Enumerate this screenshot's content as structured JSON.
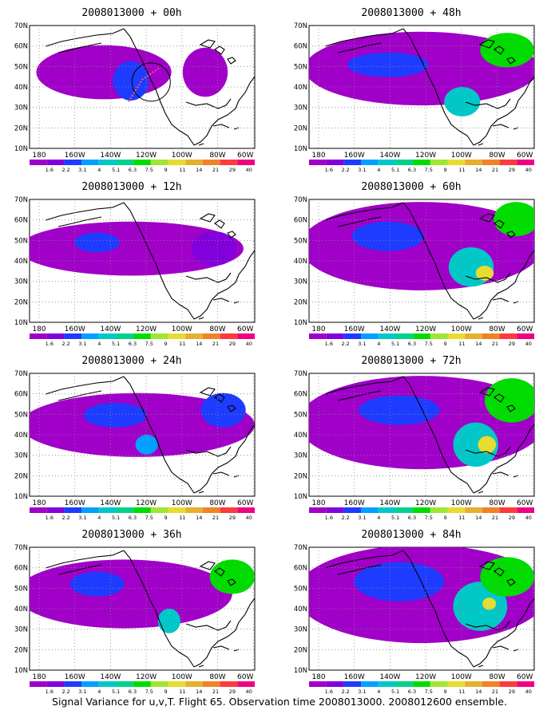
{
  "panels": [
    {
      "title": "2008013000 + 00h",
      "key": "00"
    },
    {
      "title": "2008013000 + 48h",
      "key": "48"
    },
    {
      "title": "2008013000 + 12h",
      "key": "12"
    },
    {
      "title": "2008013000 + 60h",
      "key": "60"
    },
    {
      "title": "2008013000 + 24h",
      "key": "24"
    },
    {
      "title": "2008013000 + 72h",
      "key": "72"
    },
    {
      "title": "2008013000 + 36h",
      "key": "36"
    },
    {
      "title": "2008013000 + 84h",
      "key": "84"
    }
  ],
  "lat_labels": [
    "70N",
    "60N",
    "50N",
    "40N",
    "30N",
    "20N",
    "10N"
  ],
  "lon_labels": [
    "180",
    "160W",
    "140W",
    "120W",
    "100W",
    "80W",
    "60W"
  ],
  "colorbar": {
    "labels": [
      "1.6",
      "2.2",
      "3.1",
      "4",
      "5.1",
      "6.3",
      "7.5",
      "9",
      "11",
      "14",
      "21",
      "29",
      "40"
    ],
    "colors": [
      "#a000c8",
      "#8200dc",
      "#1e3cff",
      "#00a0ff",
      "#00c8c8",
      "#00d28c",
      "#00dc00",
      "#a0e632",
      "#e6dc32",
      "#e6af2d",
      "#f08228",
      "#fa3c3c",
      "#f00082"
    ]
  },
  "map_colors": {
    "land_outline": "#000000",
    "low": "#a000c8",
    "low2": "#8200dc",
    "mid": "#1e3cff",
    "mid2": "#00a0ff",
    "high": "#00c8c8",
    "high2": "#00dc00",
    "peak": "#e6dc32",
    "flight_track": "#ff5078"
  },
  "caption": "Signal Variance for u,v,T. Flight 65. Observation time 2008013000. 2008012600 ensemble."
}
